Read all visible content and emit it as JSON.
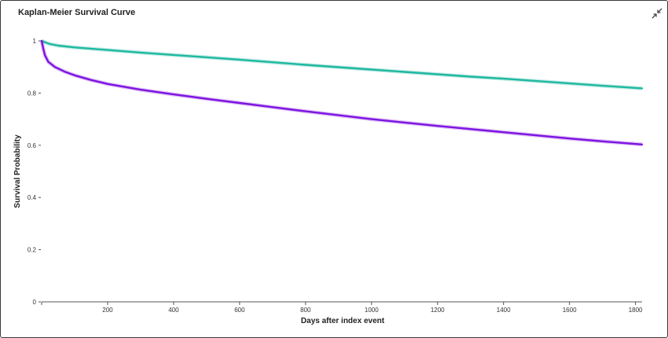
{
  "chart_data": {
    "type": "line",
    "title": "Kaplan-Meier Survival Curve",
    "xlabel": "Days after index event",
    "ylabel": "Survival Probability",
    "xlim": [
      0,
      1820
    ],
    "ylim": [
      0,
      1
    ],
    "x_ticks": [
      200,
      400,
      600,
      800,
      1000,
      1200,
      1400,
      1600,
      1800
    ],
    "y_ticks": [
      0,
      0.2,
      0.4,
      0.6,
      0.8,
      1
    ],
    "y_tick_labels": [
      "0",
      "0.2",
      "0.4",
      "0.6",
      "0.8",
      "1"
    ],
    "grid": false,
    "legend": "none",
    "series": [
      {
        "color": "#1fb8a0",
        "x": [
          0,
          10,
          25,
          50,
          100,
          200,
          300,
          400,
          500,
          600,
          700,
          800,
          900,
          1000,
          1100,
          1200,
          1300,
          1400,
          1500,
          1600,
          1700,
          1820
        ],
        "y": [
          1.0,
          0.995,
          0.988,
          0.982,
          0.975,
          0.965,
          0.955,
          0.946,
          0.937,
          0.928,
          0.918,
          0.908,
          0.899,
          0.89,
          0.881,
          0.872,
          0.863,
          0.855,
          0.846,
          0.837,
          0.828,
          0.818
        ]
      },
      {
        "color": "#7e14e0",
        "x": [
          0,
          5,
          10,
          20,
          40,
          70,
          100,
          150,
          200,
          300,
          400,
          500,
          600,
          700,
          800,
          900,
          1000,
          1100,
          1200,
          1300,
          1400,
          1500,
          1600,
          1700,
          1820
        ],
        "y": [
          1.0,
          0.97,
          0.945,
          0.92,
          0.9,
          0.882,
          0.868,
          0.85,
          0.835,
          0.813,
          0.795,
          0.778,
          0.762,
          0.746,
          0.73,
          0.715,
          0.7,
          0.687,
          0.674,
          0.662,
          0.65,
          0.638,
          0.626,
          0.615,
          0.603
        ]
      }
    ]
  },
  "icons": {
    "collapse": "collapse-arrows-icon"
  }
}
